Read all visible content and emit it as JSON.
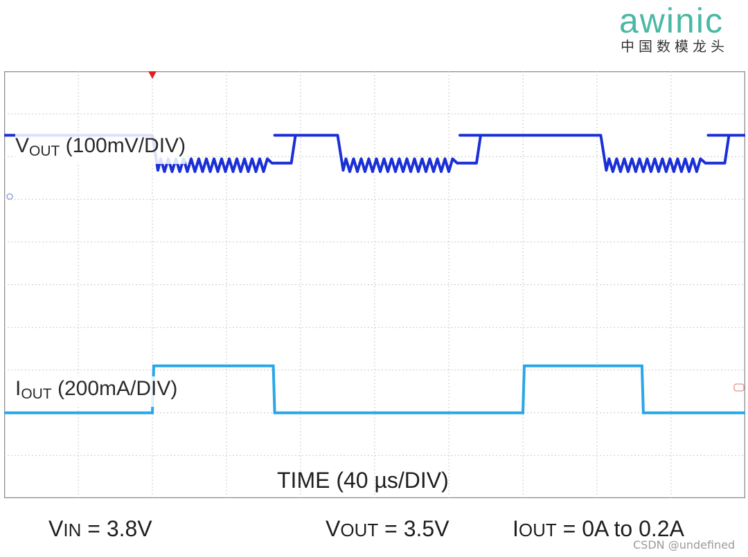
{
  "logo": {
    "brand": "awinic",
    "tagline": "中国数模龙头"
  },
  "colors": {
    "vout_trace": "#1a2fd6",
    "iout_trace": "#2aa6e8",
    "grid": "#c8c8c8",
    "frame": "#8a8a8a",
    "trigger_marker": "#e02020",
    "logo_accent": "#49b8a4"
  },
  "chart_data": {
    "type": "line",
    "x_unit": "µs",
    "x_range": [
      0,
      400
    ],
    "grid": true,
    "divisions": {
      "horizontal": 10,
      "vertical": 10
    },
    "trigger_time": 80,
    "series": [
      {
        "name": "VOUT",
        "label_main": "V",
        "label_sub": "OUT",
        "label_scale": " (100mV/DIV)",
        "scale_per_div": "100mV",
        "color_key": "vout_trace",
        "high_level_div": 8.5,
        "low_level_div": 7.8,
        "ripple_div": 0.15,
        "segments": [
          {
            "t_start": 0,
            "t_end": 80,
            "level": "high"
          },
          {
            "t_start": 80,
            "t_end": 146,
            "level": "low_ripple"
          },
          {
            "t_start": 146,
            "t_end": 180,
            "level": "high"
          },
          {
            "t_start": 180,
            "t_end": 246,
            "level": "low_ripple"
          },
          {
            "t_start": 246,
            "t_end": 260,
            "level": "high"
          },
          {
            "t_start": 260,
            "t_end": 322,
            "level": "high"
          },
          {
            "t_start": 322,
            "t_end": 380,
            "level": "low_ripple"
          },
          {
            "t_start": 380,
            "t_end": 400,
            "level": "high"
          }
        ]
      },
      {
        "name": "IOUT",
        "label_main": "I",
        "label_sub": "OUT",
        "label_scale": " (200mA/DIV)",
        "scale_per_div": "200mA",
        "color_key": "iout_trace",
        "low_level_div": 2.0,
        "high_level_div": 3.1,
        "pulses": [
          {
            "t_start": 80,
            "t_end": 146
          },
          {
            "t_start": 280,
            "t_end": 345
          }
        ]
      }
    ],
    "xlabel": "TIME (40 µs/DIV)"
  },
  "conditions": {
    "vin_main": "V",
    "vin_sub": "IN",
    "vin_value": " = 3.8V",
    "vout_main": "V",
    "vout_sub": "OUT",
    "vout_value": " = 3.5V",
    "iout_main": "I",
    "iout_sub": "OUT",
    "iout_value": " = 0A to 0.2A"
  },
  "watermark": "CSDN @undefined"
}
